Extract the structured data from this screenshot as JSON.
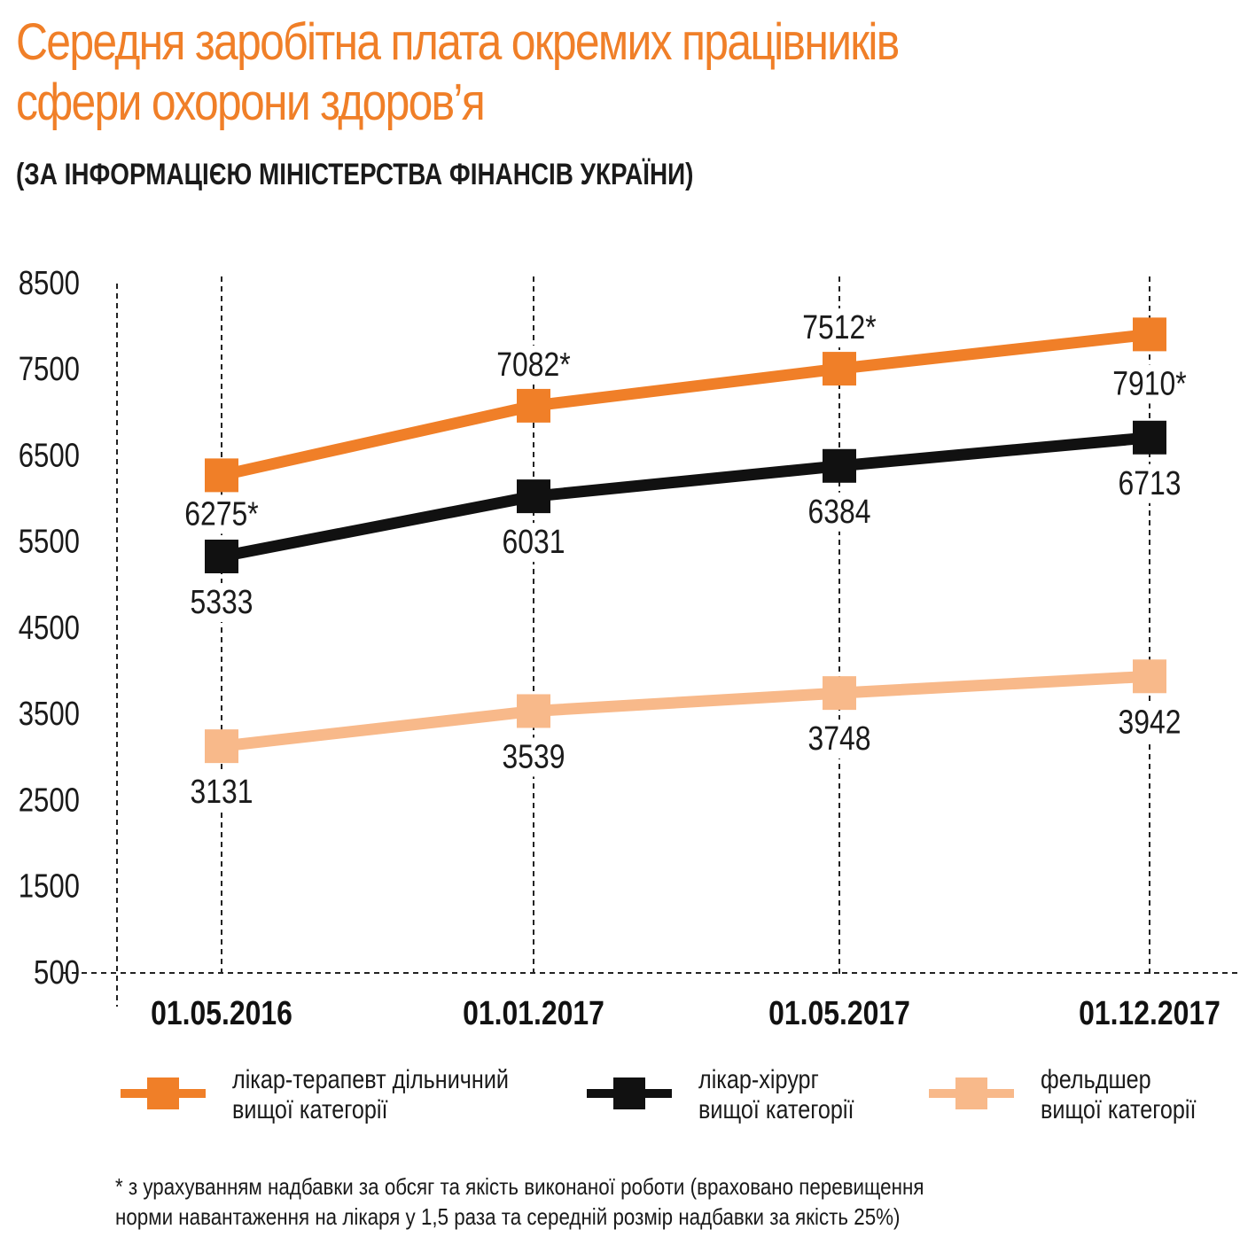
{
  "header": {
    "title_line1": "Середня заробітна плата окремих працівників",
    "title_line2": "сфери охорони здоров’я",
    "subtitle": "(ЗА ІНФОРМАЦІЄЮ МІНІСТЕРСТВА ФІНАНСІВ УКРАЇНИ)"
  },
  "colors": {
    "title": "#f07f28",
    "therapist": "#f07f28",
    "surgeon": "#111111",
    "paramedic": "#f8b98a"
  },
  "chart_data": {
    "type": "line",
    "x": [
      "01.05.2016",
      "01.01.2017",
      "01.05.2017",
      "01.12.2017"
    ],
    "y_ticks": [
      "8500",
      "7500",
      "6500",
      "5500",
      "4500",
      "3500",
      "2500",
      "1500",
      "500"
    ],
    "ylim": [
      500,
      8500
    ],
    "grid": "dashed vertical lines at each date",
    "series": [
      {
        "key": "therapist",
        "name_line1": "лікар-терапевт дільничний",
        "name_line2": "вищої категорії",
        "values": [
          6275,
          7082,
          7512,
          7910
        ],
        "labels": [
          "6275*",
          "7082*",
          "7512*",
          "7910*"
        ]
      },
      {
        "key": "surgeon",
        "name_line1": "лікар-хірург",
        "name_line2": "вищої категорії",
        "values": [
          5333,
          6031,
          6384,
          6713
        ],
        "labels": [
          "5333",
          "6031",
          "6384",
          "6713"
        ]
      },
      {
        "key": "paramedic",
        "name_line1": "фельдшер",
        "name_line2": "вищої категорії",
        "values": [
          3131,
          3539,
          3748,
          3942
        ],
        "labels": [
          "3131",
          "3539",
          "3748",
          "3942"
        ]
      }
    ]
  },
  "footnote": {
    "line1": "* з урахуванням надбавки за обсяг та якість виконаної роботи (враховано перевищення",
    "line2": "норми навантаження на лікаря у 1,5 раза та середній розмір надбавки за якість 25%)"
  }
}
